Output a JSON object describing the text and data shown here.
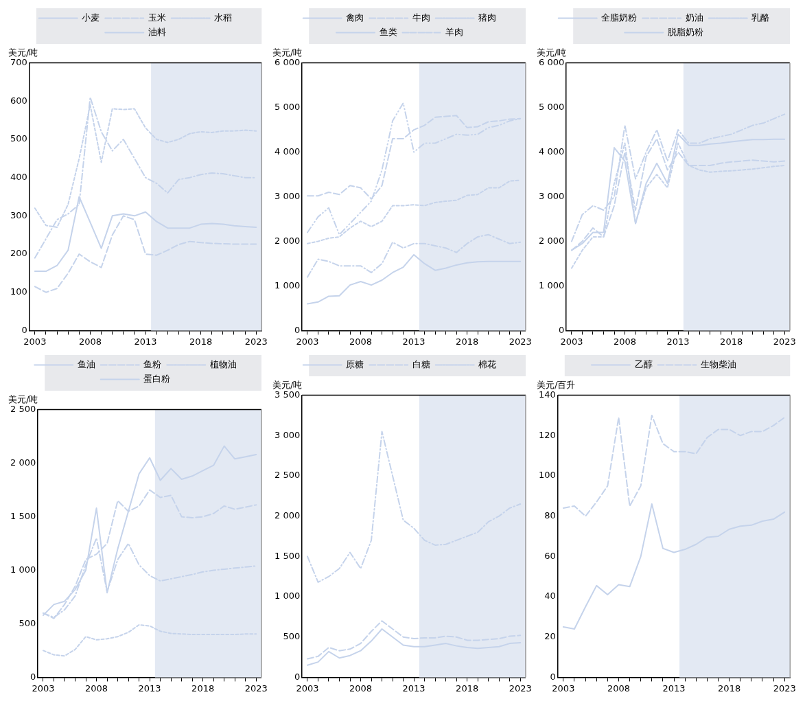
{
  "chart_data": [
    {
      "type": "line",
      "ylabel": "美元/吨",
      "legend": "top",
      "x": [
        2003,
        2004,
        2005,
        2006,
        2007,
        2008,
        2009,
        2010,
        2011,
        2012,
        2013,
        2014,
        2015,
        2016,
        2017,
        2018,
        2019,
        2020,
        2021,
        2022,
        2023
      ],
      "xlim": [
        2002.5,
        2023.5
      ],
      "xticks": [
        2003,
        {
          "value": 2004,
          "label": null
        },
        {
          "value": 2005,
          "label": null
        },
        {
          "value": 2006,
          "label": null
        },
        {
          "value": 2007,
          "label": null
        },
        2008,
        {
          "value": 2009,
          "label": null
        },
        {
          "value": 2010,
          "label": null
        },
        {
          "value": 2011,
          "label": null
        },
        {
          "value": 2012,
          "label": null
        },
        2013,
        {
          "value": 2014,
          "label": null
        },
        {
          "value": 2015,
          "label": null
        },
        {
          "value": 2016,
          "label": null
        },
        {
          "value": 2017,
          "label": null
        },
        2018,
        {
          "value": 2019,
          "label": null
        },
        {
          "value": 2020,
          "label": null
        },
        {
          "value": 2021,
          "label": null
        },
        {
          "value": 2022,
          "label": null
        },
        2023
      ],
      "ylim": [
        0,
        700
      ],
      "yticks": [
        0,
        100,
        200,
        300,
        400,
        500,
        600,
        700
      ],
      "bands": [
        {
          "axis": "x",
          "from": 2013.5,
          "to": 2023.5,
          "color": "#e3e9f3"
        }
      ],
      "series": [
        {
          "name": "小麦",
          "color": "#c5d3eb",
          "line_style": "solid",
          "values": [
            155,
            155,
            170,
            210,
            350,
            283,
            215,
            300,
            305,
            300,
            310,
            285,
            268,
            268,
            268,
            278,
            280,
            278,
            274,
            272,
            270
          ]
        },
        {
          "name": "玉米",
          "color": "#c5d3eb",
          "line_style": "dashed",
          "values": [
            115,
            100,
            110,
            150,
            200,
            180,
            165,
            250,
            300,
            290,
            200,
            197,
            210,
            225,
            233,
            230,
            228,
            227,
            226,
            226,
            226
          ]
        },
        {
          "name": "水稻",
          "color": "#c5d3eb",
          "line_style": "dashdot",
          "values": [
            190,
            240,
            290,
            305,
            330,
            610,
            520,
            470,
            500,
            450,
            400,
            385,
            360,
            395,
            400,
            408,
            412,
            410,
            405,
            400,
            400
          ]
        },
        {
          "name": "油料",
          "color": "#c5d3eb",
          "line_style": "dotted",
          "values": [
            320,
            275,
            270,
            330,
            450,
            590,
            440,
            580,
            578,
            580,
            530,
            500,
            492,
            500,
            515,
            520,
            518,
            522,
            522,
            524,
            522
          ]
        }
      ]
    },
    {
      "type": "line",
      "ylabel": "美元/吨",
      "legend": "top",
      "x": [
        2003,
        2004,
        2005,
        2006,
        2007,
        2008,
        2009,
        2010,
        2011,
        2012,
        2013,
        2014,
        2015,
        2016,
        2017,
        2018,
        2019,
        2020,
        2021,
        2022,
        2023
      ],
      "xlim": [
        2002.5,
        2023.5
      ],
      "xticks": [
        2003,
        {
          "value": 2004,
          "label": null
        },
        {
          "value": 2005,
          "label": null
        },
        {
          "value": 2006,
          "label": null
        },
        {
          "value": 2007,
          "label": null
        },
        2008,
        {
          "value": 2009,
          "label": null
        },
        {
          "value": 2010,
          "label": null
        },
        {
          "value": 2011,
          "label": null
        },
        {
          "value": 2012,
          "label": null
        },
        2013,
        {
          "value": 2014,
          "label": null
        },
        {
          "value": 2015,
          "label": null
        },
        {
          "value": 2016,
          "label": null
        },
        {
          "value": 2017,
          "label": null
        },
        2018,
        {
          "value": 2019,
          "label": null
        },
        {
          "value": 2020,
          "label": null
        },
        {
          "value": 2021,
          "label": null
        },
        {
          "value": 2022,
          "label": null
        },
        2023
      ],
      "ylim": [
        0,
        6000
      ],
      "yticks": [
        0,
        {
          "value": 1000,
          "label": "1 000"
        },
        {
          "value": 2000,
          "label": "2 000"
        },
        {
          "value": 3000,
          "label": "3 000"
        },
        {
          "value": 4000,
          "label": "4 000"
        },
        {
          "value": 5000,
          "label": "5 000"
        },
        {
          "value": 6000,
          "label": "6 000"
        }
      ],
      "bands": [
        {
          "axis": "x",
          "from": 2013.5,
          "to": 2023.5,
          "color": "#e3e9f3"
        }
      ],
      "series": [
        {
          "name": "禽肉",
          "color": "#c5d3eb",
          "line_style": "solid",
          "values": [
            600,
            640,
            770,
            780,
            1020,
            1100,
            1020,
            1130,
            1300,
            1420,
            1700,
            1500,
            1350,
            1400,
            1470,
            1520,
            1540,
            1550,
            1550,
            1550,
            1550
          ]
        },
        {
          "name": "牛肉",
          "color": "#c5d3eb",
          "line_style": "dashed",
          "values": [
            3020,
            3020,
            3100,
            3050,
            3250,
            3200,
            2950,
            3250,
            4300,
            4300,
            4500,
            4600,
            4780,
            4800,
            4820,
            4550,
            4570,
            4680,
            4700,
            4740,
            4750
          ]
        },
        {
          "name": "猪肉",
          "color": "#c5d3eb",
          "line_style": "dashdot",
          "values": [
            1200,
            1600,
            1550,
            1450,
            1450,
            1450,
            1300,
            1500,
            1980,
            1850,
            1950,
            1950,
            1900,
            1850,
            1750,
            1950,
            2100,
            2150,
            2050,
            1950,
            1980
          ]
        },
        {
          "name": "鱼类",
          "color": "#c5d3eb",
          "line_style": "dotted",
          "values": [
            1950,
            2000,
            2070,
            2100,
            2300,
            2450,
            2330,
            2450,
            2800,
            2800,
            2820,
            2800,
            2870,
            2900,
            2920,
            3030,
            3050,
            3200,
            3200,
            3350,
            3370
          ]
        },
        {
          "name": "羊肉",
          "color": "#c5d3eb",
          "line_style": "dashdotdot",
          "values": [
            2200,
            2550,
            2750,
            2150,
            2400,
            2650,
            2900,
            3600,
            4700,
            5100,
            4000,
            4200,
            4200,
            4300,
            4400,
            4380,
            4400,
            4550,
            4600,
            4700,
            4750
          ]
        }
      ]
    },
    {
      "type": "line",
      "ylabel": "美元/吨",
      "legend": "top",
      "x": [
        2003,
        2004,
        2005,
        2006,
        2007,
        2008,
        2009,
        2010,
        2011,
        2012,
        2013,
        2014,
        2015,
        2016,
        2017,
        2018,
        2019,
        2020,
        2021,
        2022,
        2023
      ],
      "xlim": [
        2002.5,
        2023.5
      ],
      "xticks": [
        2003,
        {
          "value": 2004,
          "label": null
        },
        {
          "value": 2005,
          "label": null
        },
        {
          "value": 2006,
          "label": null
        },
        {
          "value": 2007,
          "label": null
        },
        2008,
        {
          "value": 2009,
          "label": null
        },
        {
          "value": 2010,
          "label": null
        },
        {
          "value": 2011,
          "label": null
        },
        {
          "value": 2012,
          "label": null
        },
        2013,
        {
          "value": 2014,
          "label": null
        },
        {
          "value": 2015,
          "label": null
        },
        {
          "value": 2016,
          "label": null
        },
        {
          "value": 2017,
          "label": null
        },
        2018,
        {
          "value": 2019,
          "label": null
        },
        {
          "value": 2020,
          "label": null
        },
        {
          "value": 2021,
          "label": null
        },
        {
          "value": 2022,
          "label": null
        },
        2023
      ],
      "ylim": [
        0,
        6000
      ],
      "yticks": [
        0,
        {
          "value": 1000,
          "label": "1 000"
        },
        {
          "value": 2000,
          "label": "2 000"
        },
        {
          "value": 3000,
          "label": "3 000"
        },
        {
          "value": 4000,
          "label": "4 000"
        },
        {
          "value": 5000,
          "label": "5 000"
        },
        {
          "value": 6000,
          "label": "6 000"
        }
      ],
      "bands": [
        {
          "axis": "x",
          "from": 2013.5,
          "to": 2023.5,
          "color": "#e3e9f3"
        }
      ],
      "series": [
        {
          "name": "全脂奶粉",
          "color": "#c5d3eb",
          "line_style": "solid",
          "values": [
            1800,
            1950,
            2200,
            2200,
            4100,
            3800,
            2400,
            3300,
            3750,
            3300,
            4400,
            4150,
            4150,
            4180,
            4200,
            4230,
            4260,
            4280,
            4280,
            4290,
            4290
          ]
        },
        {
          "name": "奶油",
          "color": "#c5d3eb",
          "line_style": "dashed",
          "values": [
            1800,
            2000,
            2300,
            2100,
            2800,
            4000,
            2700,
            3900,
            4300,
            3600,
            4000,
            3700,
            3700,
            3700,
            3750,
            3780,
            3800,
            3820,
            3800,
            3780,
            3800
          ]
        },
        {
          "name": "乳酪",
          "color": "#c5d3eb",
          "line_style": "dashdot",
          "values": [
            2000,
            2600,
            2800,
            2700,
            3000,
            4600,
            3400,
            4000,
            4500,
            3800,
            4500,
            4200,
            4200,
            4300,
            4350,
            4400,
            4500,
            4600,
            4650,
            4750,
            4850
          ]
        },
        {
          "name": "脱脂奶粉",
          "color": "#c5d3eb",
          "line_style": "dotted",
          "values": [
            1400,
            1800,
            2100,
            2100,
            3300,
            4200,
            2400,
            3200,
            3500,
            3200,
            4200,
            3700,
            3600,
            3550,
            3570,
            3580,
            3600,
            3620,
            3650,
            3680,
            3700
          ]
        }
      ]
    },
    {
      "type": "line",
      "ylabel": "美元/吨",
      "legend": "top",
      "x": [
        2003,
        2004,
        2005,
        2006,
        2007,
        2008,
        2009,
        2010,
        2011,
        2012,
        2013,
        2014,
        2015,
        2016,
        2017,
        2018,
        2019,
        2020,
        2021,
        2022,
        2023
      ],
      "xlim": [
        2002.5,
        2023.5
      ],
      "xticks": [
        2003,
        {
          "value": 2004,
          "label": null
        },
        {
          "value": 2005,
          "label": null
        },
        {
          "value": 2006,
          "label": null
        },
        {
          "value": 2007,
          "label": null
        },
        2008,
        {
          "value": 2009,
          "label": null
        },
        {
          "value": 2010,
          "label": null
        },
        {
          "value": 2011,
          "label": null
        },
        {
          "value": 2012,
          "label": null
        },
        2013,
        {
          "value": 2014,
          "label": null
        },
        {
          "value": 2015,
          "label": null
        },
        {
          "value": 2016,
          "label": null
        },
        {
          "value": 2017,
          "label": null
        },
        2018,
        {
          "value": 2019,
          "label": null
        },
        {
          "value": 2020,
          "label": null
        },
        {
          "value": 2021,
          "label": null
        },
        {
          "value": 2022,
          "label": null
        },
        2023
      ],
      "ylim": [
        0,
        2500
      ],
      "yticks": [
        0,
        500,
        {
          "value": 1000,
          "label": "1 000"
        },
        {
          "value": 1500,
          "label": "1 500"
        },
        {
          "value": 2000,
          "label": "2 000"
        },
        {
          "value": 2500,
          "label": "2 500"
        }
      ],
      "bands": [
        {
          "axis": "x",
          "from": 2013.5,
          "to": 2023.5,
          "color": "#e3e9f3"
        }
      ],
      "series": [
        {
          "name": "鱼油",
          "color": "#c5d3eb",
          "line_style": "solid",
          "values": [
            580,
            680,
            710,
            820,
            1000,
            1580,
            790,
            1200,
            1550,
            1900,
            2050,
            1840,
            1950,
            1850,
            1880,
            1930,
            1980,
            2160,
            2040,
            2060,
            2080
          ]
        },
        {
          "name": "鱼粉",
          "color": "#c5d3eb",
          "line_style": "dashed",
          "values": [
            600,
            550,
            680,
            850,
            1100,
            1150,
            1250,
            1650,
            1550,
            1600,
            1750,
            1680,
            1700,
            1500,
            1490,
            1500,
            1530,
            1600,
            1570,
            1590,
            1610
          ]
        },
        {
          "name": "植物油",
          "color": "#c5d3eb",
          "line_style": "dashdot",
          "values": [
            600,
            560,
            630,
            760,
            1050,
            1300,
            800,
            1100,
            1250,
            1050,
            950,
            900,
            920,
            940,
            960,
            985,
            1000,
            1010,
            1020,
            1030,
            1040
          ]
        },
        {
          "name": "蛋白粉",
          "color": "#c5d3eb",
          "line_style": "dotted",
          "values": [
            250,
            210,
            200,
            260,
            380,
            350,
            360,
            380,
            420,
            490,
            480,
            430,
            410,
            405,
            400,
            400,
            400,
            400,
            400,
            405,
            405
          ]
        }
      ]
    },
    {
      "type": "line",
      "ylabel": "美元/吨",
      "legend": "top",
      "x": [
        2003,
        2004,
        2005,
        2006,
        2007,
        2008,
        2009,
        2010,
        2011,
        2012,
        2013,
        2014,
        2015,
        2016,
        2017,
        2018,
        2019,
        2020,
        2021,
        2022,
        2023
      ],
      "xlim": [
        2002.5,
        2023.5
      ],
      "xticks": [
        2003,
        {
          "value": 2004,
          "label": null
        },
        {
          "value": 2005,
          "label": null
        },
        {
          "value": 2006,
          "label": null
        },
        {
          "value": 2007,
          "label": null
        },
        2008,
        {
          "value": 2009,
          "label": null
        },
        {
          "value": 2010,
          "label": null
        },
        {
          "value": 2011,
          "label": null
        },
        {
          "value": 2012,
          "label": null
        },
        2013,
        {
          "value": 2014,
          "label": null
        },
        {
          "value": 2015,
          "label": null
        },
        {
          "value": 2016,
          "label": null
        },
        {
          "value": 2017,
          "label": null
        },
        2018,
        {
          "value": 2019,
          "label": null
        },
        {
          "value": 2020,
          "label": null
        },
        {
          "value": 2021,
          "label": null
        },
        {
          "value": 2022,
          "label": null
        },
        2023
      ],
      "ylim": [
        0,
        3500
      ],
      "yticks": [
        0,
        500,
        {
          "value": 1000,
          "label": "1 000"
        },
        {
          "value": 1500,
          "label": "1 500"
        },
        {
          "value": 2000,
          "label": "2 000"
        },
        {
          "value": 2500,
          "label": "2 500"
        },
        {
          "value": 3000,
          "label": "3 000"
        },
        {
          "value": 3500,
          "label": "3 500"
        }
      ],
      "bands": [
        {
          "axis": "x",
          "from": 2013.5,
          "to": 2023.5,
          "color": "#e3e9f3"
        }
      ],
      "series": [
        {
          "name": "原糖",
          "color": "#c5d3eb",
          "line_style": "solid",
          "values": [
            150,
            190,
            320,
            240,
            270,
            330,
            450,
            600,
            500,
            400,
            380,
            380,
            400,
            420,
            390,
            370,
            360,
            370,
            380,
            420,
            430
          ]
        },
        {
          "name": "白糖",
          "color": "#c5d3eb",
          "line_style": "dashed",
          "values": [
            230,
            260,
            370,
            330,
            350,
            420,
            570,
            700,
            600,
            500,
            480,
            490,
            490,
            510,
            500,
            460,
            460,
            470,
            480,
            510,
            520
          ]
        },
        {
          "name": "棉花",
          "color": "#c5d3eb",
          "line_style": "dashdot",
          "values": [
            1500,
            1180,
            1250,
            1350,
            1550,
            1350,
            1700,
            3050,
            2500,
            1950,
            1850,
            1700,
            1640,
            1650,
            1700,
            1750,
            1800,
            1930,
            2000,
            2100,
            2150
          ]
        }
      ]
    },
    {
      "type": "line",
      "ylabel": "美元/百升",
      "legend": "top",
      "x": [
        2003,
        2004,
        2005,
        2006,
        2007,
        2008,
        2009,
        2010,
        2011,
        2012,
        2013,
        2014,
        2015,
        2016,
        2017,
        2018,
        2019,
        2020,
        2021,
        2022,
        2023
      ],
      "xlim": [
        2002.5,
        2023.5
      ],
      "xticks": [
        2003,
        {
          "value": 2004,
          "label": null
        },
        {
          "value": 2005,
          "label": null
        },
        {
          "value": 2006,
          "label": null
        },
        {
          "value": 2007,
          "label": null
        },
        2008,
        {
          "value": 2009,
          "label": null
        },
        {
          "value": 2010,
          "label": null
        },
        {
          "value": 2011,
          "label": null
        },
        {
          "value": 2012,
          "label": null
        },
        2013,
        {
          "value": 2014,
          "label": null
        },
        {
          "value": 2015,
          "label": null
        },
        {
          "value": 2016,
          "label": null
        },
        {
          "value": 2017,
          "label": null
        },
        2018,
        {
          "value": 2019,
          "label": null
        },
        {
          "value": 2020,
          "label": null
        },
        {
          "value": 2021,
          "label": null
        },
        {
          "value": 2022,
          "label": null
        },
        2023
      ],
      "ylim": [
        0,
        140
      ],
      "yticks": [
        0,
        20,
        40,
        60,
        80,
        100,
        120,
        140
      ],
      "bands": [
        {
          "axis": "x",
          "from": 2013.5,
          "to": 2023.5,
          "color": "#e3e9f3"
        }
      ],
      "series": [
        {
          "name": "乙醇",
          "color": "#c5d3eb",
          "line_style": "solid",
          "values": [
            25,
            24,
            35,
            45.5,
            41,
            46,
            45,
            60,
            86,
            64,
            62,
            63.5,
            66,
            69.5,
            70,
            73.5,
            75,
            75.5,
            77.5,
            78.5,
            82
          ]
        },
        {
          "name": "生物柴油",
          "color": "#c5d3eb",
          "line_style": "dashed",
          "values": [
            84,
            85,
            80,
            87,
            95,
            129,
            85,
            95,
            130,
            116,
            112,
            112,
            111,
            119,
            123,
            123,
            120,
            122,
            122,
            125,
            129
          ]
        }
      ]
    }
  ]
}
